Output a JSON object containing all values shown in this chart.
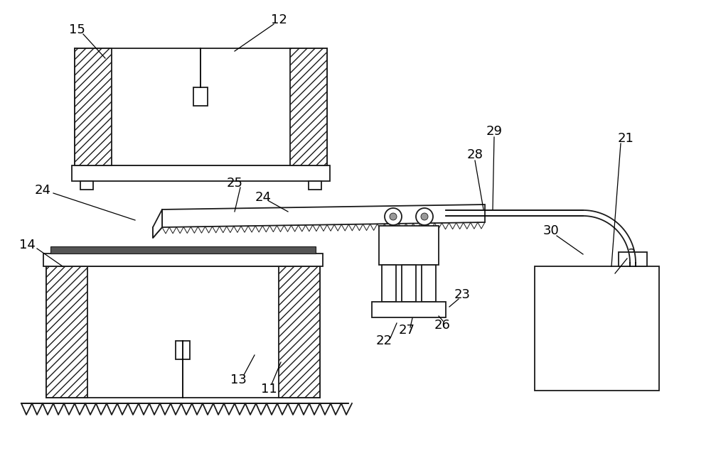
{
  "bg_color": "#ffffff",
  "line_color": "#1a1a1a",
  "fig_width": 10.0,
  "fig_height": 6.52,
  "dpi": 100
}
